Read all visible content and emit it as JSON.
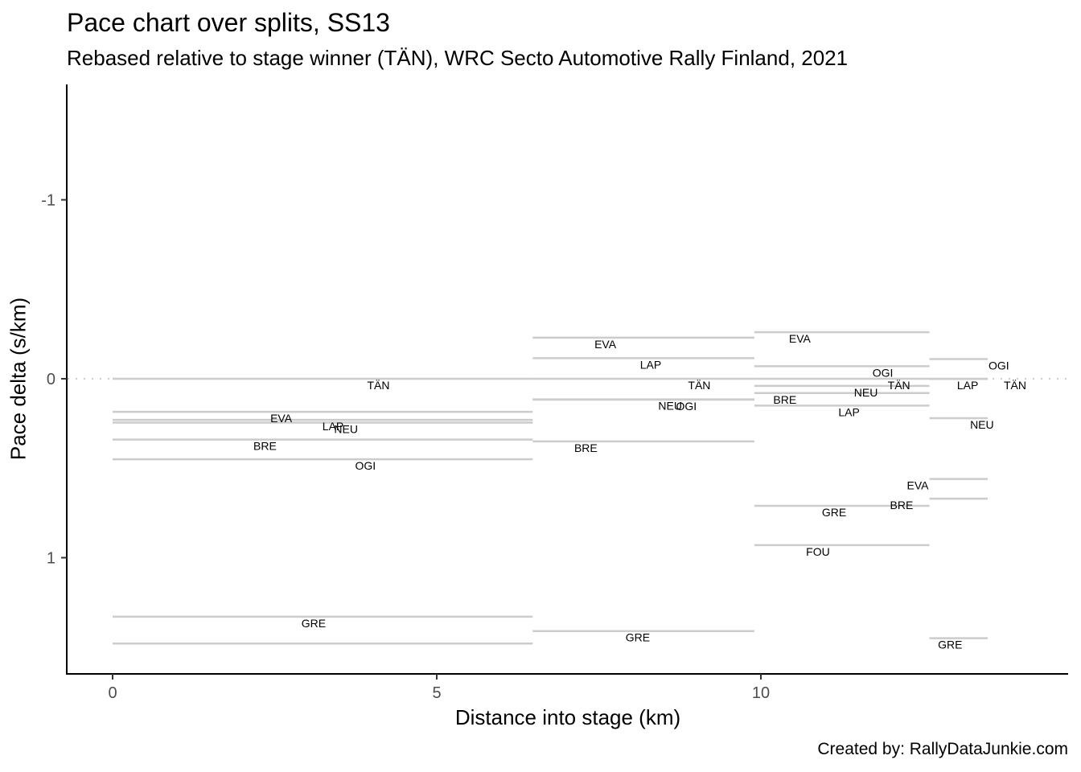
{
  "title": "Pace chart over splits, SS13",
  "subtitle": "Rebased relative to stage winner (TÄN), WRC Secto Automotive Rally Finland, 2021",
  "caption": "Created by: RallyDataJunkie.com",
  "chart_data": {
    "type": "line",
    "title": "Pace chart over splits, SS13",
    "subtitle": "Rebased relative to stage winner (TÄN), WRC Secto Automotive Rally Finland, 2021",
    "xlabel": "Distance into stage (km)",
    "ylabel": "Pace delta (s/km)",
    "xlim": [
      -0.7,
      14.75
    ],
    "ylim": [
      1.65,
      -1.65
    ],
    "y_reversed": true,
    "x_ticks": [
      0,
      5,
      10
    ],
    "y_ticks": [
      -1,
      0,
      1
    ],
    "grid": false,
    "reference_line": {
      "y": 0,
      "style": "dotted",
      "color": "#cccccc"
    },
    "segment_color": "#cccccc",
    "segments": [
      {
        "start_km": 0,
        "end_km": 6.48,
        "values": [
          {
            "driver": "TÄN",
            "pace_delta": 0.0,
            "label_km": 4.1
          },
          {
            "driver": "EVA",
            "pace_delta": 0.185,
            "label_km": 2.6
          },
          {
            "driver": "LAP",
            "pace_delta": 0.23,
            "label_km": 3.4
          },
          {
            "driver": "NEU",
            "pace_delta": 0.245,
            "label_km": 3.6
          },
          {
            "driver": "BRE",
            "pace_delta": 0.34,
            "label_km": 2.35
          },
          {
            "driver": "OGI",
            "pace_delta": 0.45,
            "label_km": 3.9
          },
          {
            "driver": "GRE",
            "pace_delta": 1.33,
            "label_km": 3.1
          },
          {
            "driver": "",
            "pace_delta": 1.48,
            "label_km": null
          }
        ]
      },
      {
        "start_km": 6.48,
        "end_km": 9.9,
        "values": [
          {
            "driver": "EVA",
            "pace_delta": -0.23,
            "label_km": 7.6
          },
          {
            "driver": "LAP",
            "pace_delta": -0.115,
            "label_km": 8.3
          },
          {
            "driver": "TÄN",
            "pace_delta": 0.0,
            "label_km": 9.05
          },
          {
            "driver": "NEU",
            "pace_delta": 0.115,
            "label_km": 8.6
          },
          {
            "driver": "OGI",
            "pace_delta": 0.117,
            "label_km": 8.85
          },
          {
            "driver": "BRE",
            "pace_delta": 0.35,
            "label_km": 7.3
          },
          {
            "driver": "GRE",
            "pace_delta": 1.41,
            "label_km": 8.1
          }
        ]
      },
      {
        "start_km": 9.9,
        "end_km": 12.6,
        "values": [
          {
            "driver": "EVA",
            "pace_delta": -0.26,
            "label_km": 10.6
          },
          {
            "driver": "OGI",
            "pace_delta": -0.07,
            "label_km": 11.88
          },
          {
            "driver": "TÄN",
            "pace_delta": 0.0,
            "label_km": 12.13
          },
          {
            "driver": "NEU",
            "pace_delta": 0.04,
            "label_km": 11.62
          },
          {
            "driver": "BRE",
            "pace_delta": 0.08,
            "label_km": 10.37
          },
          {
            "driver": "LAP",
            "pace_delta": 0.15,
            "label_km": 11.36
          },
          {
            "driver": "GRE",
            "pace_delta": 0.71,
            "label_km": 11.13
          },
          {
            "driver": "FOU",
            "pace_delta": 0.93,
            "label_km": 10.88
          }
        ]
      },
      {
        "start_km": 12.6,
        "end_km": 13.5,
        "values": [
          {
            "driver": "OGI",
            "pace_delta": -0.11,
            "label_km": 13.67
          },
          {
            "driver": "LAP",
            "pace_delta": 0.0,
            "label_km": 13.19
          },
          {
            "driver": "TÄN",
            "pace_delta": 0.001,
            "label_km": 13.92
          },
          {
            "driver": "NEU",
            "pace_delta": 0.22,
            "label_km": 13.41
          },
          {
            "driver": "EVA",
            "pace_delta": 0.56,
            "label_km": 12.42
          },
          {
            "driver": "BRE",
            "pace_delta": 0.67,
            "label_km": 12.17
          },
          {
            "driver": "GRE",
            "pace_delta": 1.45,
            "label_km": 12.92
          }
        ]
      }
    ]
  }
}
